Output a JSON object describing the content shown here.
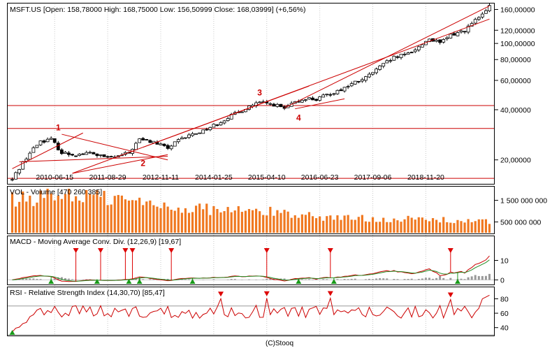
{
  "colors": {
    "frame": "#000000",
    "grid": "#c8c8c8",
    "candle": "#000000",
    "trend": "#cc0000",
    "volume": "#f07820",
    "macd_line": "#cc0000",
    "signal_line": "#228b22",
    "histogram": "#999999",
    "rsi_line": "#cc0000",
    "rsi_level": "#999999",
    "marker_up": "#1a9a1a",
    "marker_down": "#dd0000",
    "annotation": "#cc0000"
  },
  "footer": "(C)Stooq",
  "chart_data": [
    {
      "type": "candlestick",
      "title": "MSFT.US [Open: 158,78000  High: 168,75000  Low: 156,50999  Close: 168,03999]  (+6,56%)",
      "y_scale": "log",
      "ylim": [
        14.5,
        172
      ],
      "y_ticks": [
        "160,00000",
        "120,00000",
        "100,00000",
        "80,00000",
        "60,00000",
        "40,00000",
        "20,00000"
      ],
      "y_tick_values": [
        160,
        120,
        100,
        80,
        60,
        40,
        20
      ],
      "x_tick_labels": [
        "2010-06-15",
        "2011-08-29",
        "2012-11-11",
        "2014-01-25",
        "2015-04-10",
        "2016-06-23",
        "2017-09-06",
        "2018-11-20"
      ],
      "x_tick_index": [
        12,
        27,
        42,
        57,
        72,
        87,
        102,
        117
      ],
      "n_bars": 136,
      "price_path": [
        [
          0,
          15.2
        ],
        [
          5,
          22
        ],
        [
          8,
          26
        ],
        [
          11,
          26.5
        ],
        [
          14,
          22
        ],
        [
          18,
          21.5
        ],
        [
          22,
          22
        ],
        [
          27,
          20.5
        ],
        [
          30,
          21
        ],
        [
          33,
          22
        ],
        [
          36,
          26.5
        ],
        [
          40,
          25.5
        ],
        [
          44,
          23.5
        ],
        [
          47,
          26
        ],
        [
          50,
          28
        ],
        [
          54,
          30
        ],
        [
          58,
          33
        ],
        [
          61,
          36
        ],
        [
          64,
          38.5
        ],
        [
          67,
          42
        ],
        [
          70,
          44
        ],
        [
          74,
          43
        ],
        [
          77,
          40.5
        ],
        [
          80,
          44
        ],
        [
          83,
          47
        ],
        [
          86,
          46
        ],
        [
          89,
          49
        ],
        [
          93,
          53
        ],
        [
          96,
          57
        ],
        [
          100,
          62
        ],
        [
          104,
          72
        ],
        [
          108,
          82
        ],
        [
          111,
          85
        ],
        [
          115,
          95
        ],
        [
          118,
          107
        ],
        [
          121,
          100
        ],
        [
          124,
          112
        ],
        [
          128,
          120
        ],
        [
          131,
          137
        ],
        [
          134,
          155
        ],
        [
          135,
          168
        ]
      ],
      "trendlines": [
        {
          "from": [
            0,
            17.7
          ],
          "to": [
            20,
            29.0
          ]
        },
        {
          "from": [
            2,
            19.5
          ],
          "to": [
            44,
            21.0
          ]
        },
        {
          "from": [
            14,
            28.5
          ],
          "to": [
            44,
            20.0
          ]
        },
        {
          "from": [
            17,
            16.6
          ],
          "to": [
            44,
            21.5
          ]
        },
        {
          "from": [
            17,
            16.6
          ],
          "to": [
            135,
            140.0
          ]
        },
        {
          "from": [
            37,
            23.8
          ],
          "to": [
            84,
            55.5
          ]
        },
        {
          "from": [
            77,
            41.0
          ],
          "to": [
            135,
            168.0
          ]
        },
        {
          "from": [
            80,
            40.5
          ],
          "to": [
            94,
            46.5
          ]
        }
      ],
      "horizontal_levels": [
        42.4,
        30.9,
        15.5
      ],
      "annotations": [
        {
          "label": "1",
          "index": 13,
          "value": 30.0
        },
        {
          "label": "2",
          "index": 37,
          "value": 18.4
        },
        {
          "label": "3",
          "index": 70,
          "value": 48.8
        },
        {
          "label": "4",
          "index": 81,
          "value": 34.5
        }
      ]
    },
    {
      "type": "bar",
      "title": "VOL - Volume [470 260 385]",
      "y_ticks": [
        "1 500 000 000",
        "500 000 000"
      ],
      "y_tick_values": [
        1500000000,
        500000000
      ],
      "ylim": [
        0,
        2100000000
      ],
      "volume_path": [
        [
          0,
          1500000000
        ],
        [
          15,
          1800000000
        ],
        [
          30,
          1550000000
        ],
        [
          45,
          1200000000
        ],
        [
          60,
          1050000000
        ],
        [
          75,
          950000000
        ],
        [
          90,
          700000000
        ],
        [
          105,
          650000000
        ],
        [
          120,
          600000000
        ],
        [
          135,
          500000000
        ]
      ]
    },
    {
      "type": "line",
      "title": "MACD - Moving Average Conv. Div. (12,26,9) [19,67]",
      "y_ticks": [
        "10",
        "0"
      ],
      "y_tick_values": [
        10,
        0
      ],
      "ylim": [
        -2,
        22
      ],
      "sell_markers": [
        18,
        25,
        32,
        34,
        45,
        72,
        90,
        124
      ],
      "buy_markers": [
        11,
        24,
        33,
        36,
        51,
        81,
        91,
        126
      ]
    },
    {
      "type": "line",
      "title": "RSI - Relative Strength Index (14,30,70) [85,47]",
      "y_ticks": [
        "80",
        "60",
        "40"
      ],
      "y_tick_values": [
        80,
        60,
        40
      ],
      "ylim": [
        30,
        95
      ],
      "levels": [
        70,
        30
      ],
      "sell_markers": [
        59,
        72,
        90,
        124
      ],
      "buy_markers": [
        0
      ]
    }
  ]
}
